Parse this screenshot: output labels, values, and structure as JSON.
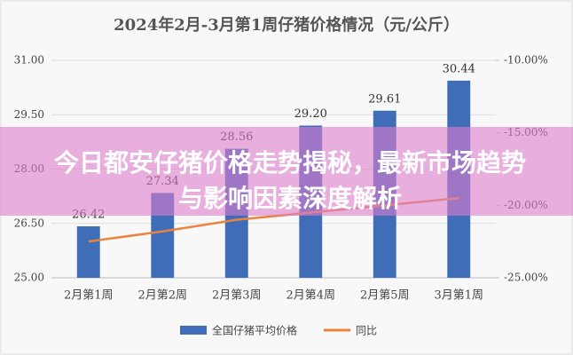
{
  "chart_data": {
    "type": "bar_line",
    "title": "2024年2月-3月第1周仔猪价格情况（元/公斤）",
    "categories": [
      "2月第1周",
      "2月第2周",
      "2月第3周",
      "2月第4周",
      "2月第5周",
      "3月第1周"
    ],
    "series": [
      {
        "name": "全国仔猪平均价格",
        "color": "#3f6db8",
        "type": "bar",
        "values": [
          26.42,
          27.34,
          28.56,
          29.2,
          29.61,
          30.44
        ],
        "value_labels": [
          "26.42",
          "27.34",
          "28.56",
          "29.20",
          "29.61",
          "30.44"
        ]
      },
      {
        "name": "同比",
        "color": "#e8843e",
        "type": "line",
        "axis": "y2",
        "values": [
          -22.5,
          -21.8,
          -21.0,
          -20.5,
          -20.0,
          -19.5
        ]
      }
    ],
    "ylim": [
      25,
      31
    ],
    "yticks": [
      {
        "value": 25,
        "label": "25.00"
      },
      {
        "value": 26.5,
        "label": "26.50"
      },
      {
        "value": 28,
        "label": "28.00"
      },
      {
        "value": 29.5,
        "label": "29.50"
      },
      {
        "value": 31,
        "label": "31.00"
      }
    ],
    "y2lim": [
      -25,
      -10
    ],
    "y2ticks": [
      {
        "value": -25,
        "label": "-25.00%"
      },
      {
        "value": -20,
        "label": "-20.00%"
      },
      {
        "value": -15,
        "label": "-15.00%"
      },
      {
        "value": -10,
        "label": "-10.00%"
      }
    ],
    "grid": true,
    "legend": "bottom"
  },
  "banner": {
    "text": "今日都安仔猪价格走势揭秘，最新市场趋势与影响因素深度解析"
  }
}
